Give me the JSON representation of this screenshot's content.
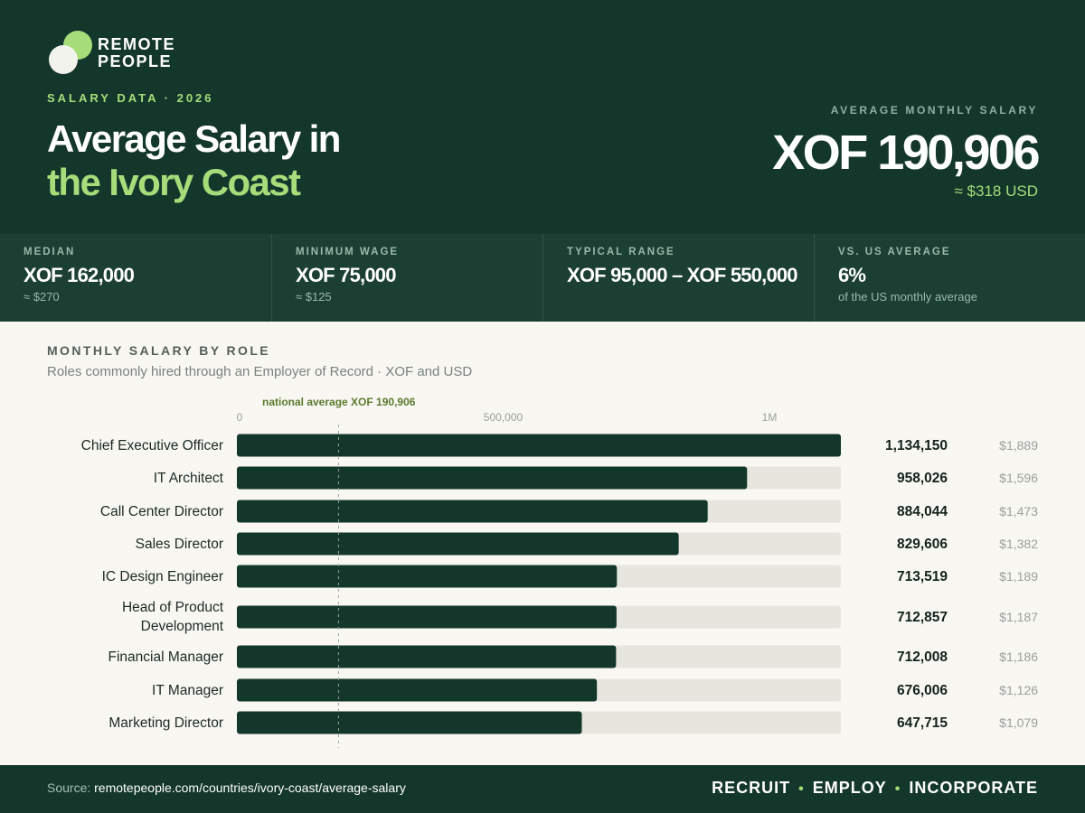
{
  "brand": {
    "line1": "REMOTE",
    "line2": "PEOPLE"
  },
  "header": {
    "eyebrow": "SALARY DATA · 2026",
    "title_line1": "Average Salary in",
    "title_line2": "the Ivory Coast",
    "kpi_label": "AVERAGE MONTHLY SALARY",
    "kpi_value": "XOF 190,906",
    "kpi_usd": "≈ $318 USD"
  },
  "stats": [
    {
      "label": "MEDIAN",
      "value": "XOF 162,000",
      "sub": "≈ $270"
    },
    {
      "label": "MINIMUM WAGE",
      "value": "XOF 75,000",
      "sub": "≈ $125"
    },
    {
      "label": "TYPICAL RANGE",
      "value": "XOF 95,000 – XOF 550,000",
      "sub": ""
    },
    {
      "label": "VS. US AVERAGE",
      "value": "6%",
      "sub": "of the US monthly average"
    }
  ],
  "section": {
    "title": "MONTHLY SALARY BY ROLE",
    "subtitle": "Roles commonly hired through an Employer of Record · XOF and USD"
  },
  "chart_data": {
    "type": "bar",
    "orientation": "horizontal",
    "categories": [
      "Chief Executive Officer",
      "IT Architect",
      "Call Center Director",
      "Sales Director",
      "IC Design Engineer",
      "Head of Product Development",
      "Financial Manager",
      "IT Manager",
      "Marketing Director"
    ],
    "values": [
      1134150,
      958026,
      884044,
      829606,
      713519,
      712857,
      712008,
      676006,
      647715
    ],
    "value_labels": [
      "1,134,150",
      "958,026",
      "884,044",
      "829,606",
      "713,519",
      "712,857",
      "712,008",
      "676,006",
      "647,715"
    ],
    "usd_labels": [
      "$1,889",
      "$1,596",
      "$1,473",
      "$1,382",
      "$1,189",
      "$1,187",
      "$1,186",
      "$1,126",
      "$1,079"
    ],
    "xlim": [
      0,
      1134150
    ],
    "ticks": [
      0,
      500000,
      1000000
    ],
    "tick_labels": [
      "0",
      "500,000",
      "1M"
    ],
    "reference": {
      "value": 190906,
      "label": "national average XOF 190,906"
    },
    "colors": {
      "bar": "#14372c",
      "track": "#e7e6de",
      "reference": "#5b7a2e"
    }
  },
  "footer": {
    "source_prefix": "Source:",
    "source_url": "remotepeople.com/countries/ivory-coast/average-salary",
    "cta": [
      "RECRUIT",
      "EMPLOY",
      "INCORPORATE"
    ]
  }
}
